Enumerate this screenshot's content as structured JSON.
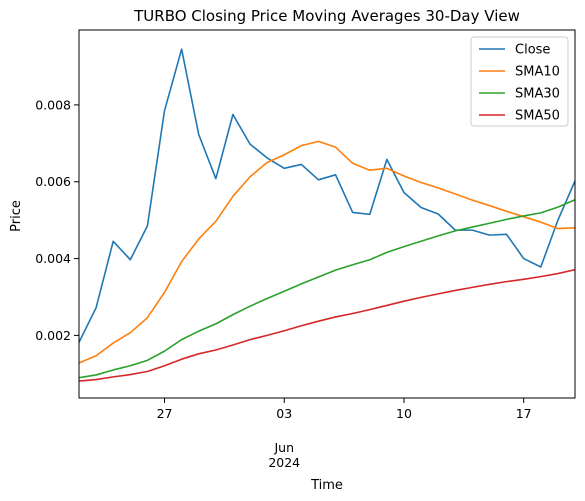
{
  "chart_data": {
    "type": "line",
    "title": "TURBO Closing Price Moving Averages 30-Day View",
    "xlabel": "Time",
    "ylabel": "Price",
    "ylim": [
      0.00037,
      0.00995
    ],
    "xlim": [
      0,
      29
    ],
    "grid": false,
    "legend_position": "top-right",
    "x_ticks": [
      {
        "x": 5,
        "label": "27",
        "sub": ""
      },
      {
        "x": 12,
        "label": "03",
        "sub": "Jun\n2024"
      },
      {
        "x": 19,
        "label": "10",
        "sub": ""
      },
      {
        "x": 26,
        "label": "17",
        "sub": ""
      }
    ],
    "y_ticks": [
      {
        "value": 0.002,
        "label": "0.002"
      },
      {
        "value": 0.004,
        "label": "0.004"
      },
      {
        "value": 0.006,
        "label": "0.006"
      },
      {
        "value": 0.008,
        "label": "0.008"
      }
    ],
    "x": [
      0,
      1,
      2,
      3,
      4,
      5,
      6,
      7,
      8,
      9,
      10,
      11,
      12,
      13,
      14,
      15,
      16,
      17,
      18,
      19,
      20,
      21,
      22,
      23,
      24,
      25,
      26,
      27,
      28,
      29
    ],
    "series": [
      {
        "name": "Close",
        "color": "#1f77b4",
        "values": [
          0.00182,
          0.00272,
          0.00445,
          0.00397,
          0.00485,
          0.00785,
          0.00945,
          0.00723,
          0.00608,
          0.00775,
          0.00698,
          0.00662,
          0.00635,
          0.00645,
          0.00605,
          0.00618,
          0.0052,
          0.00515,
          0.00658,
          0.00572,
          0.00533,
          0.00516,
          0.00474,
          0.00474,
          0.00461,
          0.00463,
          0.004,
          0.00378,
          0.005,
          0.00602
        ]
      },
      {
        "name": "SMA10",
        "color": "#ff7f0e",
        "values": [
          0.00128,
          0.00147,
          0.0018,
          0.00207,
          0.00246,
          0.00312,
          0.00392,
          0.00451,
          0.00497,
          0.00562,
          0.00613,
          0.0065,
          0.0067,
          0.00694,
          0.00705,
          0.0069,
          0.00648,
          0.0063,
          0.00635,
          0.00615,
          0.00598,
          0.00584,
          0.00568,
          0.00552,
          0.00538,
          0.00523,
          0.00509,
          0.00495,
          0.00478,
          0.0048
        ]
      },
      {
        "name": "SMA30",
        "color": "#2ca02c",
        "values": [
          0.0009,
          0.00097,
          0.0011,
          0.00121,
          0.00135,
          0.00159,
          0.00189,
          0.00211,
          0.0023,
          0.00254,
          0.00276,
          0.00296,
          0.00315,
          0.00334,
          0.00352,
          0.0037,
          0.00384,
          0.00397,
          0.00416,
          0.00431,
          0.00445,
          0.00459,
          0.00472,
          0.00482,
          0.00492,
          0.00502,
          0.00511,
          0.00519,
          0.00534,
          0.00553
        ]
      },
      {
        "name": "SMA50",
        "color": "#d62728",
        "values": [
          0.00081,
          0.00085,
          0.00092,
          0.00098,
          0.00106,
          0.00121,
          0.00138,
          0.00152,
          0.00162,
          0.00175,
          0.00189,
          0.002,
          0.00212,
          0.00225,
          0.00237,
          0.00248,
          0.00257,
          0.00267,
          0.00278,
          0.00289,
          0.00299,
          0.00308,
          0.00317,
          0.00325,
          0.00333,
          0.0034,
          0.00346,
          0.00353,
          0.00361,
          0.00371
        ]
      }
    ]
  }
}
